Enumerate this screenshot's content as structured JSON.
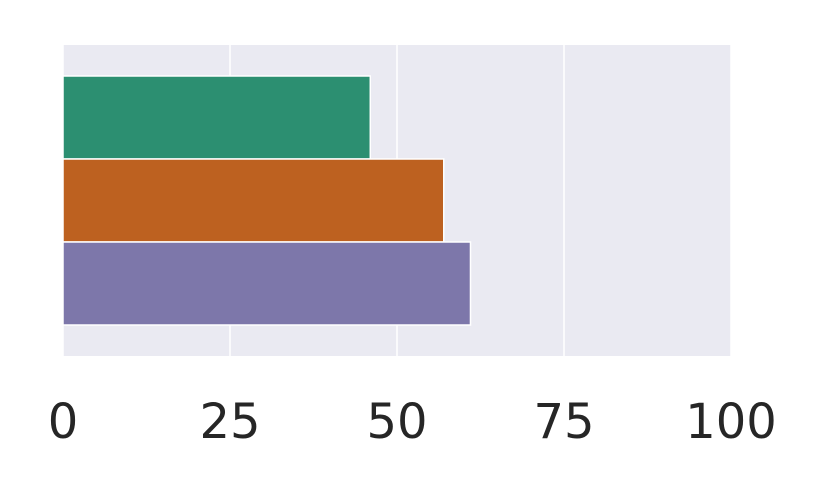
{
  "chart_data": {
    "type": "barh",
    "categories": [
      null,
      null,
      null
    ],
    "values": [
      46,
      57,
      61
    ],
    "colors": [
      "#2c8f71",
      "#bd6120",
      "#7d77aa"
    ],
    "xlim": [
      0,
      100
    ],
    "xticks": [
      0,
      25,
      50,
      75,
      100
    ],
    "grid": true
  }
}
